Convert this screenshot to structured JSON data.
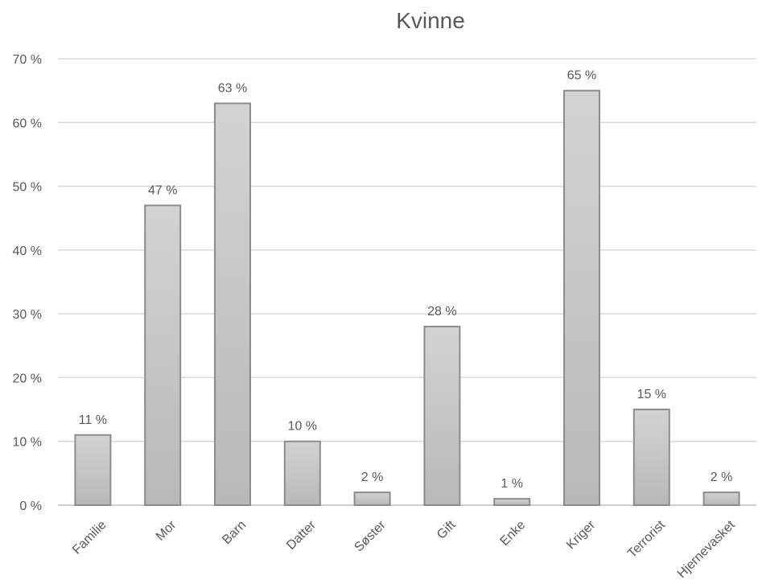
{
  "chart_data": {
    "type": "bar",
    "title": "Kvinne",
    "xlabel": "",
    "ylabel": "",
    "categories": [
      "Familie",
      "Mor",
      "Barn",
      "Datter",
      "Søster",
      "Gift",
      "Enke",
      "Kriger",
      "Terrorist",
      "Hjernevasket"
    ],
    "values": [
      11,
      47,
      63,
      10,
      2,
      28,
      1,
      65,
      15,
      2
    ],
    "data_labels": [
      "11 %",
      "47 %",
      "63 %",
      "10 %",
      "2 %",
      "28 %",
      "1 %",
      "65 %",
      "15 %",
      "2 %"
    ],
    "ylim": [
      0,
      70
    ],
    "y_ticks": [
      0,
      10,
      20,
      30,
      40,
      50,
      60,
      70
    ],
    "y_tick_labels": [
      "0 %",
      "10 %",
      "20 %",
      "30 %",
      "40 %",
      "50 %",
      "60 %",
      "70 %"
    ],
    "grid": true,
    "legend": "none",
    "colors": {
      "bar_fill_top": "#d3d3d3",
      "bar_fill_bottom": "#b8b8b8",
      "bar_border": "#8c8c8c",
      "grid": "#d9d9d9",
      "text": "#595959"
    }
  }
}
